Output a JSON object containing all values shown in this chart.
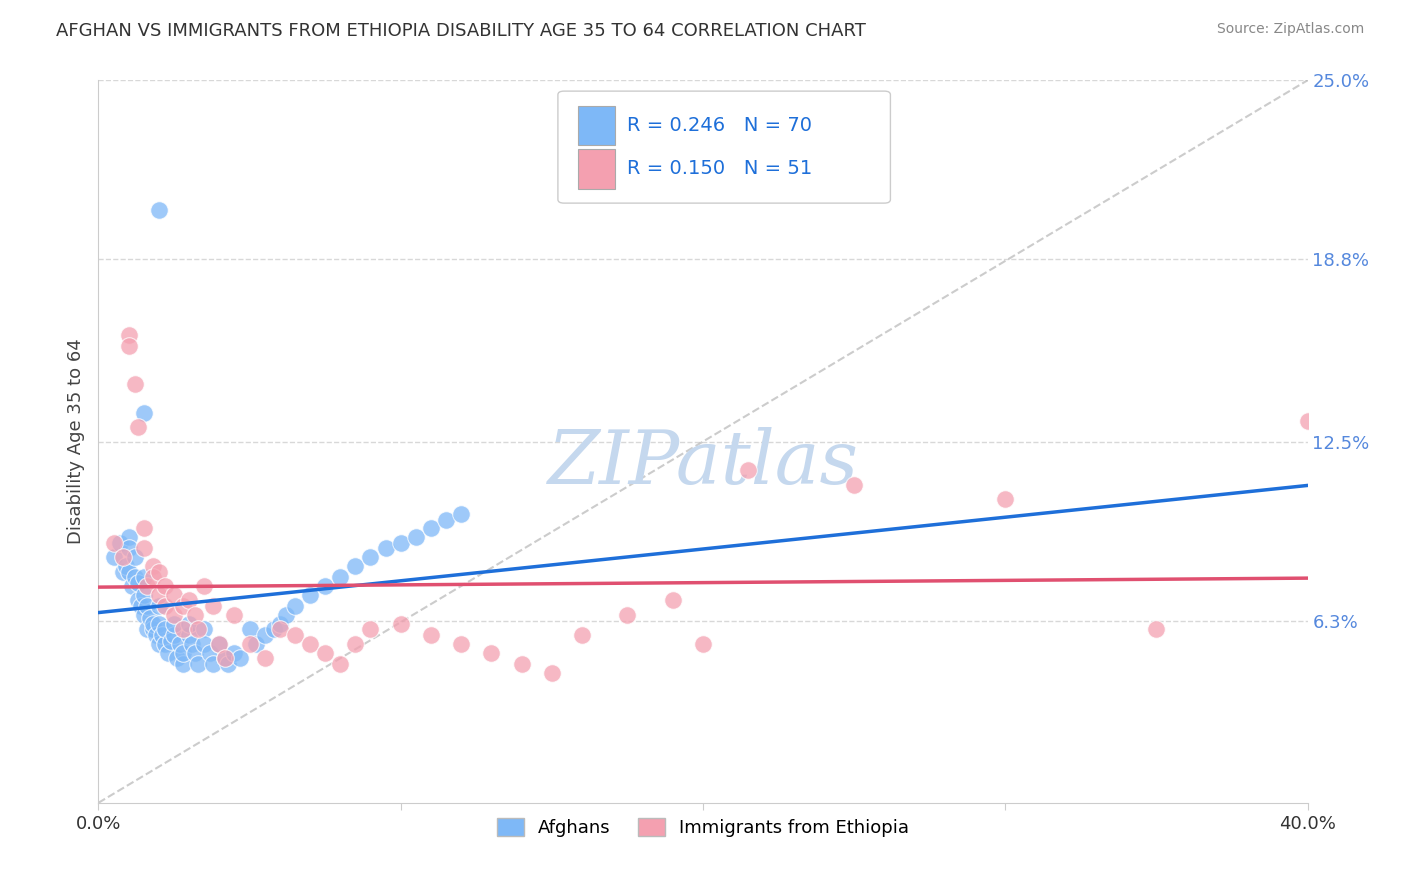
{
  "title": "AFGHAN VS IMMIGRANTS FROM ETHIOPIA DISABILITY AGE 35 TO 64 CORRELATION CHART",
  "source": "Source: ZipAtlas.com",
  "ylabel": "Disability Age 35 to 64",
  "r1": 0.246,
  "n1": 70,
  "r2": 0.15,
  "n2": 51,
  "xlim": [
    0.0,
    0.4
  ],
  "ylim": [
    0.0,
    0.25
  ],
  "ytick_positions": [
    0.063,
    0.125,
    0.188,
    0.25
  ],
  "ytick_labels": [
    "6.3%",
    "12.5%",
    "18.8%",
    "25.0%"
  ],
  "xtick_positions": [
    0.0,
    0.1,
    0.2,
    0.3,
    0.4
  ],
  "xtick_labels": [
    "0.0%",
    "",
    "",
    "",
    "40.0%"
  ],
  "legend_label1": "Afghans",
  "legend_label2": "Immigrants from Ethiopia",
  "color_afghan": "#7EB8F7",
  "color_ethiopia": "#F4A0B0",
  "color_line_afghan": "#1E6FD9",
  "color_line_ethiopia": "#E05070",
  "watermark_color": "#C5D8EE",
  "grid_color": "#D8D8D8",
  "background_color": "#FFFFFF",
  "afghan_x": [
    0.005,
    0.007,
    0.008,
    0.009,
    0.01,
    0.01,
    0.01,
    0.011,
    0.012,
    0.012,
    0.013,
    0.013,
    0.014,
    0.015,
    0.015,
    0.015,
    0.016,
    0.016,
    0.017,
    0.018,
    0.018,
    0.019,
    0.02,
    0.02,
    0.02,
    0.021,
    0.022,
    0.022,
    0.023,
    0.024,
    0.025,
    0.025,
    0.026,
    0.027,
    0.028,
    0.028,
    0.03,
    0.03,
    0.031,
    0.032,
    0.033,
    0.035,
    0.035,
    0.037,
    0.038,
    0.04,
    0.042,
    0.043,
    0.045,
    0.047,
    0.05,
    0.052,
    0.055,
    0.058,
    0.06,
    0.062,
    0.065,
    0.07,
    0.075,
    0.08,
    0.085,
    0.09,
    0.095,
    0.1,
    0.105,
    0.11,
    0.115,
    0.12,
    0.015,
    0.02
  ],
  "afghan_y": [
    0.085,
    0.09,
    0.08,
    0.082,
    0.092,
    0.088,
    0.08,
    0.075,
    0.078,
    0.085,
    0.07,
    0.076,
    0.068,
    0.072,
    0.065,
    0.078,
    0.06,
    0.068,
    0.064,
    0.06,
    0.062,
    0.058,
    0.062,
    0.055,
    0.068,
    0.058,
    0.055,
    0.06,
    0.052,
    0.056,
    0.058,
    0.062,
    0.05,
    0.055,
    0.048,
    0.052,
    0.058,
    0.062,
    0.055,
    0.052,
    0.048,
    0.06,
    0.055,
    0.052,
    0.048,
    0.055,
    0.05,
    0.048,
    0.052,
    0.05,
    0.06,
    0.055,
    0.058,
    0.06,
    0.062,
    0.065,
    0.068,
    0.072,
    0.075,
    0.078,
    0.082,
    0.085,
    0.088,
    0.09,
    0.092,
    0.095,
    0.098,
    0.1,
    0.135,
    0.205
  ],
  "ethiopia_x": [
    0.005,
    0.008,
    0.01,
    0.01,
    0.012,
    0.013,
    0.015,
    0.015,
    0.016,
    0.018,
    0.018,
    0.02,
    0.02,
    0.022,
    0.022,
    0.025,
    0.025,
    0.028,
    0.028,
    0.03,
    0.032,
    0.033,
    0.035,
    0.038,
    0.04,
    0.042,
    0.045,
    0.05,
    0.055,
    0.06,
    0.065,
    0.07,
    0.075,
    0.08,
    0.085,
    0.09,
    0.1,
    0.11,
    0.12,
    0.13,
    0.14,
    0.15,
    0.16,
    0.175,
    0.19,
    0.2,
    0.215,
    0.25,
    0.3,
    0.35,
    0.4
  ],
  "ethiopia_y": [
    0.09,
    0.085,
    0.162,
    0.158,
    0.145,
    0.13,
    0.095,
    0.088,
    0.075,
    0.082,
    0.078,
    0.072,
    0.08,
    0.075,
    0.068,
    0.072,
    0.065,
    0.068,
    0.06,
    0.07,
    0.065,
    0.06,
    0.075,
    0.068,
    0.055,
    0.05,
    0.065,
    0.055,
    0.05,
    0.06,
    0.058,
    0.055,
    0.052,
    0.048,
    0.055,
    0.06,
    0.062,
    0.058,
    0.055,
    0.052,
    0.048,
    0.045,
    0.058,
    0.065,
    0.07,
    0.055,
    0.115,
    0.11,
    0.105,
    0.06,
    0.132
  ]
}
